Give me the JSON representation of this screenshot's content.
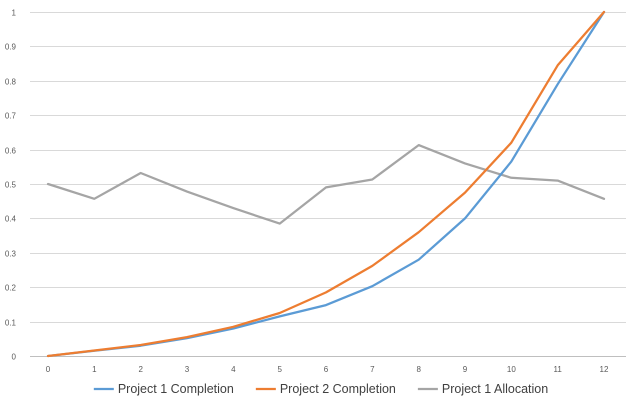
{
  "chart_data": {
    "type": "line",
    "title": "",
    "xlabel": "",
    "ylabel": "",
    "x": [
      0,
      1,
      2,
      3,
      4,
      5,
      6,
      7,
      8,
      9,
      10,
      11,
      12
    ],
    "x_tick_labels": [
      "0",
      "1",
      "2",
      "3",
      "4",
      "5",
      "6",
      "7",
      "8",
      "9",
      "10",
      "11",
      "12"
    ],
    "xlim": [
      0,
      12
    ],
    "y_ticks": [
      0,
      0.1,
      0.2,
      0.3,
      0.4,
      0.5,
      0.6,
      0.7,
      0.8,
      0.9,
      1
    ],
    "y_tick_labels": [
      "0",
      "0.1",
      "0.2",
      "0.3",
      "0.4",
      "0.5",
      "0.6",
      "0.7",
      "0.8",
      "0.9",
      "1"
    ],
    "ylim": [
      0,
      1
    ],
    "grid": "horizontal",
    "legend_position": "bottom",
    "series": [
      {
        "name": "Project 1 Completion",
        "color": "#5B9BD5",
        "values": [
          0,
          0.015,
          0.03,
          0.052,
          0.08,
          0.115,
          0.148,
          0.203,
          0.28,
          0.4,
          0.565,
          0.79,
          1.0
        ]
      },
      {
        "name": "Project 2 Completion",
        "color": "#ED7D31",
        "values": [
          0,
          0.016,
          0.032,
          0.055,
          0.085,
          0.125,
          0.185,
          0.262,
          0.36,
          0.475,
          0.62,
          0.845,
          1.0
        ]
      },
      {
        "name": "Project 1 Allocation",
        "color": "#A5A5A5",
        "values": [
          0.5,
          0.457,
          0.532,
          0.478,
          0.43,
          0.385,
          0.49,
          0.513,
          0.613,
          0.56,
          0.518,
          0.51,
          0.457
        ]
      }
    ]
  }
}
